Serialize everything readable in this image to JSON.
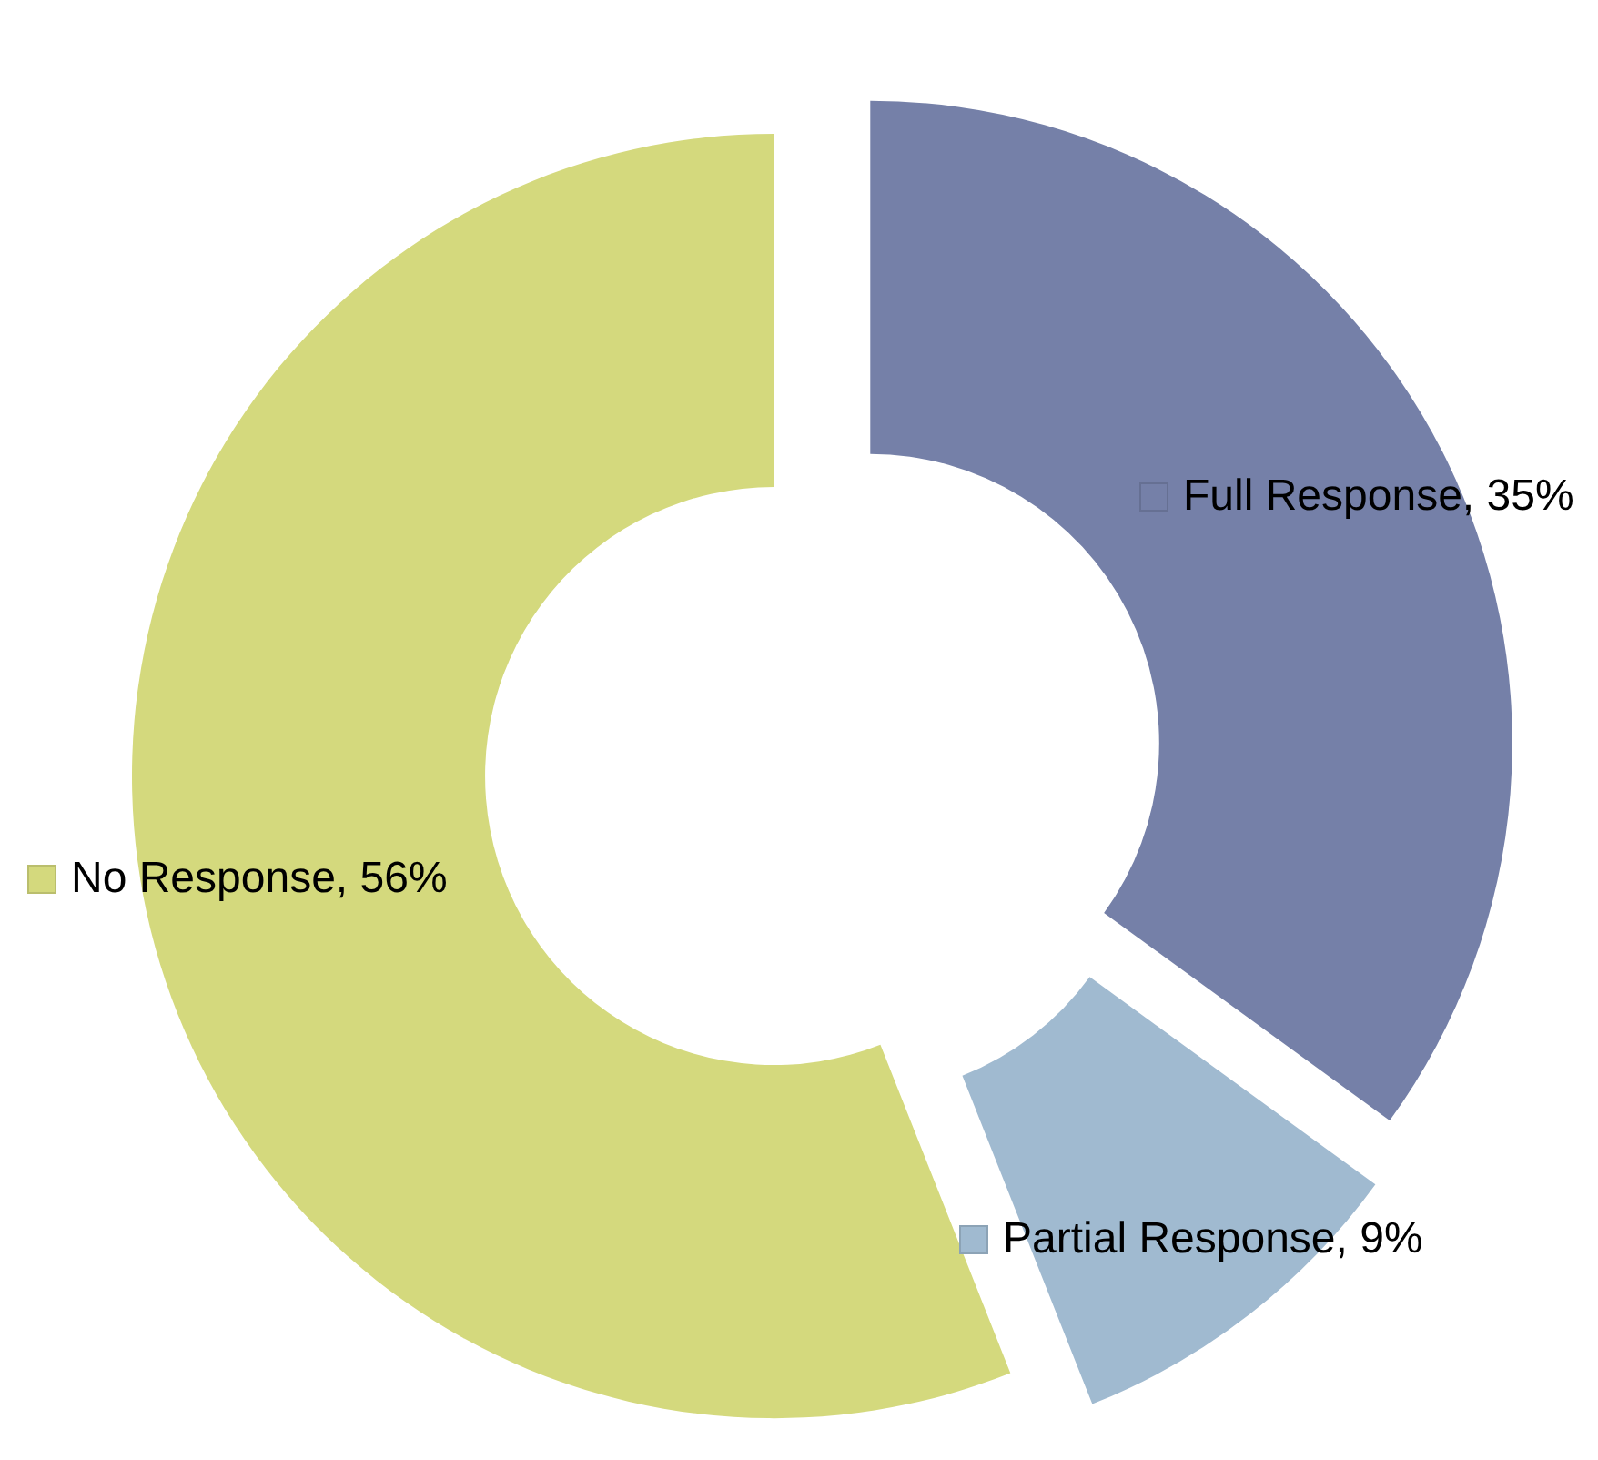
{
  "chart_data": {
    "type": "donut",
    "categories": [
      "Full Response",
      "Partial Response",
      "No Response"
    ],
    "values": [
      35,
      9,
      56
    ],
    "value_labels": [
      "35%",
      "9%",
      "56%"
    ],
    "colors": [
      "#7580a8",
      "#a0bad0",
      "#d4d97d"
    ],
    "legend": "center"
  }
}
